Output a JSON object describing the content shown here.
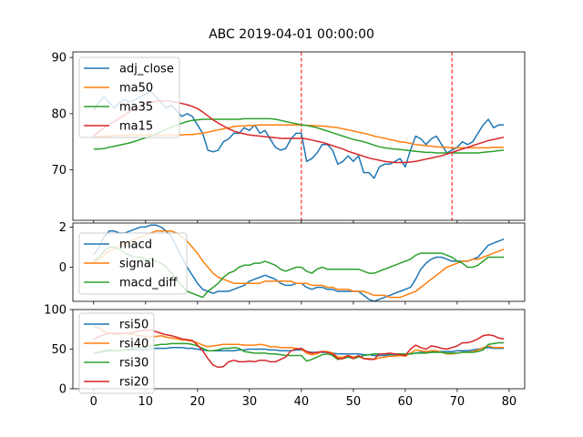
{
  "title": "ABC 2019-04-01 00:00:00",
  "colors": {
    "blue": "#1f77b4",
    "orange": "#ff7f0e",
    "green": "#2ca02c",
    "red": "#d62728",
    "vline": "#ff0000"
  },
  "chart_data": [
    {
      "type": "line",
      "panel": "price",
      "title": "ABC 2019-04-01 00:00:00",
      "xlim": [
        -4,
        83
      ],
      "ylim": [
        61,
        91
      ],
      "yticks": [
        70,
        80,
        90
      ],
      "xticks": [
        0,
        10,
        20,
        30,
        40,
        50,
        60,
        70,
        80
      ],
      "show_xtick_labels": false,
      "vlines": [
        40,
        69
      ],
      "legend": "top-left",
      "series": [
        {
          "name": "adj_close",
          "color": "blue",
          "values": [
            80.5,
            82.0,
            83.0,
            82.0,
            81.0,
            82.0,
            82.5,
            82.0,
            82.5,
            83.0,
            83.5,
            84.0,
            83.0,
            82.0,
            81.0,
            81.5,
            80.5,
            79.5,
            80.0,
            79.5,
            78.0,
            76.5,
            73.5,
            73.2,
            73.5,
            75.0,
            75.5,
            76.5,
            76.5,
            77.5,
            77.0,
            78.0,
            76.5,
            77.0,
            75.5,
            74.0,
            73.5,
            73.8,
            75.5,
            76.5,
            76.5,
            71.5,
            72.0,
            73.0,
            74.5,
            74.5,
            73.5,
            71.0,
            71.5,
            72.5,
            71.5,
            72.5,
            69.5,
            69.5,
            68.5,
            70.5,
            71.0,
            71.0,
            71.5,
            72.0,
            70.5,
            73.5,
            76.0,
            75.5,
            74.5,
            75.5,
            76.0,
            74.5,
            73.0,
            73.5,
            74.0,
            75.0,
            74.5,
            75.0,
            76.5,
            78.0,
            79.0,
            77.5,
            78.0,
            78.0
          ]
        },
        {
          "name": "ma50",
          "color": "orange",
          "values": [
            75.8,
            75.9,
            76.0,
            76.0,
            76.1,
            76.1,
            76.1,
            76.2,
            76.2,
            76.2,
            76.2,
            76.2,
            76.2,
            76.2,
            76.2,
            76.2,
            76.2,
            76.2,
            76.3,
            76.3,
            76.4,
            76.5,
            76.7,
            76.9,
            77.1,
            77.3,
            77.5,
            77.7,
            77.8,
            77.8,
            77.9,
            77.9,
            78.0,
            78.0,
            78.0,
            78.0,
            78.0,
            78.0,
            78.0,
            78.0,
            78.0,
            77.9,
            77.9,
            77.8,
            77.8,
            77.7,
            77.6,
            77.5,
            77.3,
            77.1,
            76.9,
            76.7,
            76.5,
            76.3,
            76.0,
            75.8,
            75.6,
            75.4,
            75.2,
            75.0,
            74.9,
            74.7,
            74.5,
            74.4,
            74.3,
            74.2,
            74.1,
            74.0,
            74.0,
            73.9,
            73.9,
            73.9,
            73.9,
            73.9,
            73.9,
            73.9,
            73.9,
            74.0,
            74.0,
            74.0
          ]
        },
        {
          "name": "ma35",
          "color": "green",
          "values": [
            73.7,
            73.7,
            73.8,
            74.0,
            74.2,
            74.4,
            74.6,
            74.8,
            75.1,
            75.4,
            75.7,
            76.0,
            76.4,
            76.8,
            77.2,
            77.6,
            78.0,
            78.3,
            78.6,
            78.8,
            78.9,
            79.0,
            79.0,
            79.0,
            79.0,
            79.0,
            79.0,
            79.0,
            79.0,
            79.1,
            79.1,
            79.1,
            79.1,
            79.1,
            79.1,
            79.0,
            78.8,
            78.6,
            78.4,
            78.2,
            78.0,
            77.9,
            77.7,
            77.5,
            77.2,
            76.9,
            76.6,
            76.3,
            76.0,
            75.7,
            75.4,
            75.2,
            75.0,
            74.7,
            74.4,
            74.1,
            73.9,
            73.8,
            73.7,
            73.6,
            73.5,
            73.4,
            73.3,
            73.2,
            73.1,
            73.1,
            73.0,
            73.0,
            73.0,
            73.0,
            73.0,
            73.0,
            73.0,
            73.0,
            73.0,
            73.1,
            73.2,
            73.3,
            73.4,
            73.5
          ]
        },
        {
          "name": "ma15",
          "color": "red",
          "values": [
            76.0,
            76.8,
            77.5,
            78.0,
            78.6,
            79.2,
            79.8,
            80.4,
            80.9,
            81.3,
            81.7,
            82.0,
            82.2,
            82.3,
            82.3,
            82.2,
            82.0,
            81.8,
            81.6,
            81.3,
            80.9,
            80.3,
            79.6,
            78.9,
            78.3,
            77.8,
            77.3,
            76.9,
            76.6,
            76.4,
            76.2,
            76.1,
            76.0,
            75.9,
            75.8,
            75.7,
            75.6,
            75.6,
            75.6,
            75.6,
            75.6,
            75.5,
            75.3,
            75.1,
            74.9,
            74.6,
            74.3,
            74.0,
            73.7,
            73.3,
            73.0,
            72.7,
            72.4,
            72.1,
            71.9,
            71.7,
            71.5,
            71.4,
            71.3,
            71.3,
            71.3,
            71.4,
            71.5,
            71.7,
            71.9,
            72.1,
            72.3,
            72.5,
            72.8,
            73.1,
            73.4,
            73.7,
            74.0,
            74.3,
            74.6,
            74.9,
            75.2,
            75.4,
            75.6,
            75.8
          ]
        }
      ]
    },
    {
      "type": "line",
      "panel": "macd",
      "xlim": [
        -4,
        83
      ],
      "ylim": [
        -1.7,
        2.2
      ],
      "yticks": [
        0,
        2
      ],
      "xticks": [
        0,
        10,
        20,
        30,
        40,
        50,
        60,
        70,
        80
      ],
      "show_xtick_labels": false,
      "legend": "top-left",
      "series": [
        {
          "name": "macd",
          "color": "blue",
          "values": [
            0.6,
            1.0,
            1.5,
            1.8,
            1.8,
            1.7,
            1.7,
            1.8,
            1.9,
            2.0,
            2.0,
            2.1,
            2.1,
            2.0,
            1.8,
            1.5,
            1.0,
            0.5,
            0.0,
            -0.4,
            -0.8,
            -1.1,
            -1.2,
            -1.3,
            -1.2,
            -1.2,
            -1.2,
            -1.1,
            -1.0,
            -0.9,
            -0.7,
            -0.6,
            -0.5,
            -0.4,
            -0.5,
            -0.6,
            -0.8,
            -0.9,
            -0.9,
            -0.8,
            -0.8,
            -1.0,
            -1.1,
            -1.0,
            -1.0,
            -1.1,
            -1.1,
            -1.2,
            -1.2,
            -1.2,
            -1.2,
            -1.2,
            -1.4,
            -1.6,
            -1.7,
            -1.6,
            -1.5,
            -1.4,
            -1.3,
            -1.2,
            -1.1,
            -1.0,
            -0.6,
            -0.1,
            0.2,
            0.4,
            0.5,
            0.5,
            0.4,
            0.3,
            0.3,
            0.3,
            0.3,
            0.4,
            0.5,
            0.8,
            1.1,
            1.2,
            1.3,
            1.4
          ]
        },
        {
          "name": "signal",
          "color": "orange",
          "values": [
            0.2,
            0.4,
            0.6,
            0.8,
            0.9,
            1.1,
            1.2,
            1.3,
            1.4,
            1.5,
            1.6,
            1.7,
            1.8,
            1.8,
            1.8,
            1.8,
            1.7,
            1.5,
            1.3,
            1.0,
            0.7,
            0.3,
            0.0,
            -0.3,
            -0.5,
            -0.6,
            -0.7,
            -0.8,
            -0.8,
            -0.8,
            -0.8,
            -0.8,
            -0.8,
            -0.7,
            -0.7,
            -0.7,
            -0.7,
            -0.7,
            -0.7,
            -0.8,
            -0.8,
            -0.8,
            -0.9,
            -0.9,
            -0.9,
            -1.0,
            -1.0,
            -1.1,
            -1.1,
            -1.1,
            -1.2,
            -1.2,
            -1.2,
            -1.3,
            -1.4,
            -1.4,
            -1.4,
            -1.5,
            -1.5,
            -1.5,
            -1.4,
            -1.3,
            -1.2,
            -1.0,
            -0.8,
            -0.6,
            -0.4,
            -0.2,
            0.0,
            0.1,
            0.2,
            0.3,
            0.3,
            0.4,
            0.4,
            0.5,
            0.6,
            0.7,
            0.8,
            0.9
          ]
        },
        {
          "name": "macd_diff",
          "color": "green",
          "values": [
            0.3,
            0.5,
            0.8,
            1.0,
            1.0,
            0.9,
            0.7,
            0.6,
            0.5,
            0.5,
            0.4,
            0.4,
            0.3,
            0.2,
            0.0,
            -0.3,
            -0.6,
            -0.9,
            -1.2,
            -1.3,
            -1.4,
            -1.5,
            -1.2,
            -1.0,
            -0.8,
            -0.5,
            -0.3,
            -0.2,
            0.0,
            0.1,
            0.1,
            0.2,
            0.2,
            0.3,
            0.2,
            0.1,
            -0.1,
            -0.2,
            -0.1,
            0.0,
            0.0,
            -0.2,
            -0.3,
            -0.1,
            0.0,
            -0.1,
            -0.1,
            -0.1,
            -0.1,
            -0.1,
            -0.1,
            -0.1,
            -0.2,
            -0.3,
            -0.3,
            -0.2,
            -0.1,
            0.0,
            0.1,
            0.2,
            0.3,
            0.4,
            0.6,
            0.7,
            0.7,
            0.7,
            0.7,
            0.7,
            0.6,
            0.5,
            0.3,
            0.2,
            0.0,
            0.0,
            0.1,
            0.3,
            0.5,
            0.5,
            0.5,
            0.5
          ]
        }
      ]
    },
    {
      "type": "line",
      "panel": "rsi",
      "xlim": [
        -4,
        83
      ],
      "ylim": [
        0,
        100
      ],
      "yticks": [
        0,
        50,
        100
      ],
      "xticks": [
        0,
        10,
        20,
        30,
        40,
        50,
        60,
        70,
        80
      ],
      "show_xtick_labels": true,
      "legend": "top-left",
      "series": [
        {
          "name": "rsi50",
          "color": "blue",
          "values": [
            45,
            46,
            47,
            48,
            48,
            48,
            49,
            49,
            49,
            49,
            50,
            50,
            51,
            51,
            51,
            52,
            52,
            52,
            51,
            51,
            50,
            49,
            48,
            48,
            48,
            48,
            48,
            48,
            49,
            49,
            50,
            50,
            50,
            50,
            49,
            49,
            48,
            48,
            48,
            49,
            49,
            47,
            46,
            46,
            46,
            46,
            45,
            44,
            44,
            44,
            44,
            44,
            43,
            43,
            42,
            42,
            42,
            43,
            43,
            43,
            43,
            44,
            45,
            46,
            46,
            46,
            47,
            47,
            47,
            47,
            48,
            48,
            48,
            49,
            50,
            51,
            52,
            51,
            51,
            51
          ]
        },
        {
          "name": "rsi40",
          "color": "orange",
          "values": [
            78,
            77,
            72,
            70,
            69,
            69,
            70,
            69,
            68,
            67,
            66,
            66,
            66,
            67,
            65,
            64,
            63,
            62,
            61,
            60,
            58,
            55,
            53,
            54,
            55,
            56,
            56,
            56,
            56,
            55,
            55,
            55,
            56,
            55,
            53,
            53,
            52,
            52,
            52,
            51,
            50,
            45,
            43,
            44,
            47,
            47,
            45,
            40,
            40,
            42,
            40,
            41,
            38,
            38,
            37,
            39,
            40,
            41,
            41,
            42,
            41,
            45,
            49,
            48,
            47,
            48,
            48,
            46,
            44,
            44,
            45,
            46,
            46,
            47,
            49,
            52,
            54,
            52,
            52,
            52
          ]
        },
        {
          "name": "rsi30",
          "color": "green",
          "values": [
            45,
            46,
            48,
            49,
            48,
            48,
            49,
            50,
            51,
            52,
            53,
            54,
            55,
            56,
            56,
            57,
            57,
            57,
            57,
            56,
            54,
            51,
            48,
            48,
            49,
            51,
            51,
            52,
            51,
            47,
            46,
            45,
            45,
            45,
            44,
            44,
            43,
            42,
            42,
            42,
            42,
            35,
            37,
            40,
            43,
            44,
            42,
            37,
            38,
            40,
            38,
            40,
            42,
            43,
            44,
            44,
            44,
            44,
            44,
            44,
            44,
            44,
            45,
            45,
            45,
            46,
            46,
            46,
            45,
            45,
            45,
            46,
            46,
            46,
            47,
            49,
            56,
            57,
            58,
            58
          ]
        },
        {
          "name": "rsi20",
          "color": "red",
          "values": [
            62,
            66,
            68,
            70,
            70,
            70,
            70,
            70,
            72,
            73,
            74,
            74,
            72,
            70,
            68,
            67,
            65,
            63,
            62,
            61,
            55,
            48,
            38,
            30,
            27,
            28,
            34,
            36,
            34,
            34,
            35,
            34,
            36,
            36,
            34,
            34,
            37,
            40,
            48,
            50,
            51,
            47,
            45,
            46,
            47,
            46,
            44,
            38,
            38,
            42,
            38,
            42,
            38,
            37,
            37,
            44,
            44,
            45,
            44,
            43,
            42,
            50,
            55,
            52,
            50,
            54,
            53,
            51,
            50,
            52,
            54,
            58,
            58,
            60,
            63,
            67,
            68,
            67,
            64,
            63
          ]
        }
      ]
    }
  ]
}
